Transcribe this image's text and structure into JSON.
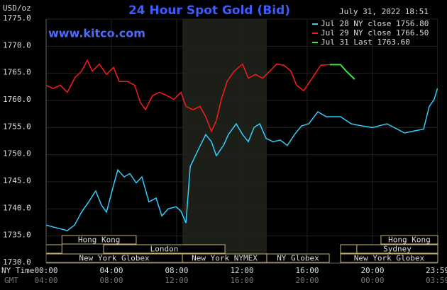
{
  "chart_data": {
    "type": "line",
    "title": "24 Hour Spot Gold (Bid)",
    "unit_label": "USD/oz",
    "source": "www.kitco.com",
    "timestamp": "July 31, 2022 18:51",
    "xlim": [
      0,
      24
    ],
    "ylim": [
      1730,
      1775
    ],
    "yticks": [
      {
        "value": 1730,
        "label": "1730.0"
      },
      {
        "value": 1735,
        "label": "1735.0"
      },
      {
        "value": 1740,
        "label": "1740.0"
      },
      {
        "value": 1745,
        "label": "1745.0"
      },
      {
        "value": 1750,
        "label": "1750.0"
      },
      {
        "value": 1755,
        "label": "1755.0"
      },
      {
        "value": 1760,
        "label": "1760.0"
      },
      {
        "value": 1765,
        "label": "1765.0"
      },
      {
        "value": 1770,
        "label": "1770.0"
      },
      {
        "value": 1775,
        "label": "1775.0"
      }
    ],
    "xticks": [
      {
        "value": 0,
        "label": "00:00"
      },
      {
        "value": 4,
        "label": "04:00"
      },
      {
        "value": 8,
        "label": "08:00"
      },
      {
        "value": 12,
        "label": "12:00"
      },
      {
        "value": 16,
        "label": "16:00"
      },
      {
        "value": 20,
        "label": "20:00"
      },
      {
        "value": 23.98,
        "label": "23:59"
      }
    ],
    "x_axis_label": "NY Time",
    "x2_axis_label": "GMT",
    "x2ticks": [
      "04:00",
      "08:00",
      "12:00",
      "16:00",
      "20:00",
      "00:00",
      "03:59"
    ],
    "grid": true,
    "highlight": [
      8.35,
      13.52
    ],
    "series": [
      {
        "name": "Jul 28 NY close 1756.80",
        "color": "#33ccff",
        "x": [
          0,
          0.65,
          1.3,
          1.74,
          2.17,
          2.61,
          3.04,
          3.39,
          3.7,
          4.04,
          4.39,
          4.78,
          5.13,
          5.52,
          5.87,
          6.3,
          6.74,
          7.09,
          7.48,
          7.96,
          8.26,
          8.57,
          8.83,
          9.35,
          9.78,
          10.13,
          10.43,
          10.87,
          11.17,
          11.65,
          12.04,
          12.39,
          12.74,
          13.09,
          13.48,
          13.91,
          14.35,
          14.78,
          15.22,
          15.65,
          16.09,
          16.65,
          17.17,
          18.04,
          18.7,
          19.35,
          20,
          20.87,
          21.52,
          21.96,
          22.61,
          23.13,
          23.48,
          23.78,
          23.98
        ],
        "values": [
          1737.0,
          1736.5,
          1736.0,
          1737.0,
          1739.4,
          1741.3,
          1743.3,
          1740.7,
          1739.4,
          1743.3,
          1747.2,
          1745.9,
          1746.5,
          1744.8,
          1745.9,
          1741.3,
          1742.0,
          1738.7,
          1740.0,
          1740.4,
          1739.6,
          1737.4,
          1747.8,
          1751.1,
          1753.7,
          1752.4,
          1749.8,
          1751.7,
          1753.7,
          1755.7,
          1753.7,
          1752.4,
          1755.0,
          1755.7,
          1753.0,
          1752.4,
          1752.7,
          1751.7,
          1753.7,
          1755.3,
          1755.7,
          1757.9,
          1757.0,
          1757.0,
          1755.7,
          1755.3,
          1755.0,
          1755.7,
          1754.7,
          1754.0,
          1754.4,
          1754.7,
          1758.9,
          1760.2,
          1762.2
        ]
      },
      {
        "name": "Jul 29 NY close 1766.50",
        "color": "#ff1a1a",
        "x": [
          0,
          0.43,
          0.87,
          1.3,
          1.74,
          2.17,
          2.52,
          2.83,
          3.26,
          3.7,
          4.13,
          4.48,
          5.0,
          5.43,
          5.78,
          6.09,
          6.52,
          6.96,
          7.39,
          7.83,
          8.26,
          8.57,
          9.0,
          9.43,
          9.78,
          10.13,
          10.43,
          10.74,
          11.09,
          11.52,
          12.04,
          12.39,
          12.83,
          13.26,
          13.7,
          14.13,
          14.57,
          15.0,
          15.35,
          15.78,
          16.3,
          16.83,
          17.39
        ],
        "values": [
          1762.8,
          1762.2,
          1762.8,
          1761.5,
          1764.1,
          1765.4,
          1767.4,
          1765.4,
          1766.7,
          1764.8,
          1766.1,
          1763.5,
          1763.5,
          1762.8,
          1759.6,
          1758.3,
          1760.9,
          1761.5,
          1760.9,
          1760.2,
          1761.5,
          1758.9,
          1758.3,
          1758.9,
          1757.0,
          1754.3,
          1756.3,
          1760.2,
          1763.5,
          1765.4,
          1766.7,
          1764.1,
          1764.8,
          1764.1,
          1765.4,
          1766.7,
          1766.5,
          1765.4,
          1762.8,
          1761.8,
          1764.1,
          1766.5,
          1766.6
        ]
      },
      {
        "name": "Jul 31 Last 1763.60",
        "color": "#33ee33",
        "x": [
          17.39,
          18.04,
          18.39,
          18.91
        ],
        "values": [
          1766.6,
          1766.6,
          1765.4,
          1763.9
        ]
      }
    ],
    "sessions": [
      {
        "label": "Hong Kong",
        "start": 0.97,
        "end": 5.52,
        "row": 0
      },
      {
        "label": "Hong Kong",
        "start": 20.52,
        "end": 24,
        "row": 0
      },
      {
        "start": 0,
        "end": 0.97,
        "row": 1
      },
      {
        "label": "London",
        "start": 3.52,
        "end": 10.96,
        "row": 1
      },
      {
        "start": 18.04,
        "end": 19.04,
        "row": 1
      },
      {
        "label": "Sydney",
        "start": 19.04,
        "end": 24,
        "row": 1
      },
      {
        "label": "New York Globex",
        "start": 0,
        "end": 8.35,
        "row": 2
      },
      {
        "label": "New York NYMEX",
        "start": 8.35,
        "end": 13.52,
        "row": 2
      },
      {
        "label": "NY Globex",
        "start": 13.52,
        "end": 17.35,
        "row": 2
      },
      {
        "label": "New York Globex",
        "start": 18.04,
        "end": 24,
        "row": 2
      }
    ]
  }
}
